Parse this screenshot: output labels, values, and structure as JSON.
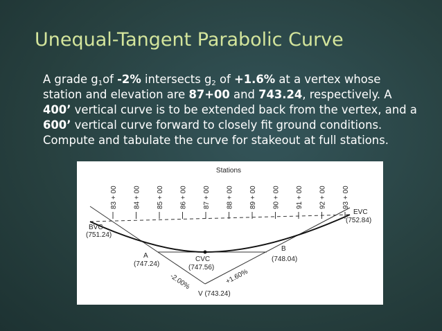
{
  "title": "Unequal-Tangent Parabolic Curve",
  "body": [
    {
      "text": "A grade g",
      "format": "plain"
    },
    {
      "text": "1",
      "format": "sub"
    },
    {
      "text": "of ",
      "format": "plain"
    },
    {
      "text": "-2%",
      "format": "bold"
    },
    {
      "text": " intersects g",
      "format": "plain"
    },
    {
      "text": "2",
      "format": "sub"
    },
    {
      "text": " of ",
      "format": "plain"
    },
    {
      "text": "+1.6%",
      "format": "bold"
    },
    {
      "text": " at a vertex whose station and elevation are ",
      "format": "plain"
    },
    {
      "text": "87+00",
      "format": "bold"
    },
    {
      "text": " and ",
      "format": "plain"
    },
    {
      "text": "743.24",
      "format": "bold"
    },
    {
      "text": ", respectively. A ",
      "format": "plain"
    },
    {
      "text": "400’",
      "format": "bold"
    },
    {
      "text": " vertical curve is to be extended back from the vertex, and a ",
      "format": "plain"
    },
    {
      "text": "600’",
      "format": "bold"
    },
    {
      "text": " vertical curve forward to closely fit ground conditions.  Compute and tabulate the curve for stakeout at full stations.",
      "format": "plain"
    }
  ],
  "figure": {
    "stations_heading": "Stations",
    "stations": [
      "83 + 00",
      "84 + 00",
      "85 + 00",
      "86 + 00",
      "87 + 00",
      "88 + 00",
      "89 + 00",
      "90 + 00",
      "91 + 00",
      "92 + 00",
      "93 + 00"
    ],
    "bvc": {
      "name": "BVC",
      "elevation": "(751.24)"
    },
    "a": {
      "name": "A",
      "elevation": "(747.24)"
    },
    "cvc": {
      "name": "CVC",
      "elevation": "(747.56)"
    },
    "b": {
      "name": "B",
      "elevation": "(748.04)"
    },
    "evc": {
      "name": "EVC",
      "elevation": "(752.84)"
    },
    "grade_back": "-2.00%",
    "grade_forward": "+1.60%",
    "vertex": "V (743.24)"
  }
}
